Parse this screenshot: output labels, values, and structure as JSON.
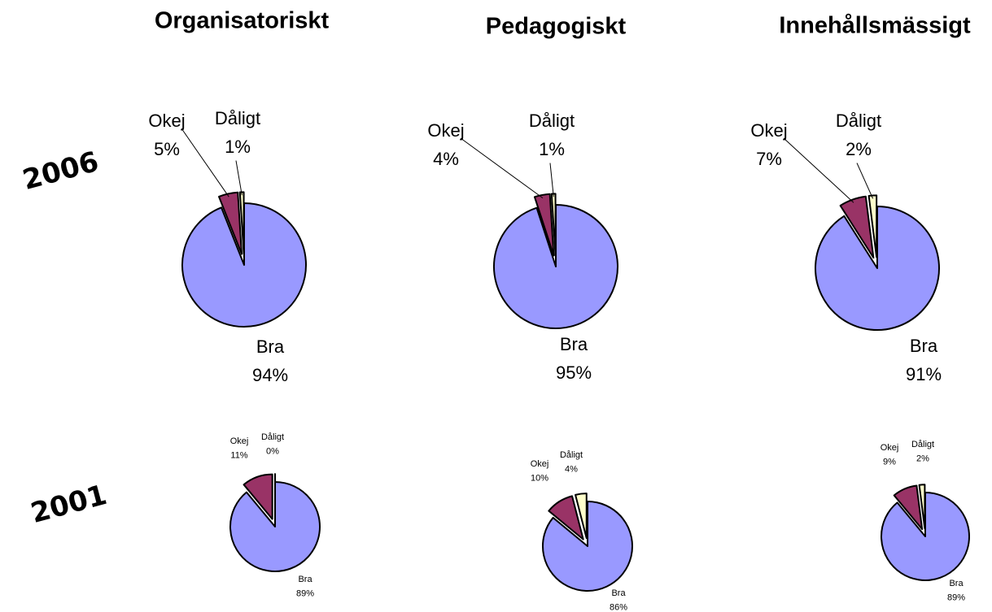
{
  "column_titles": [
    "Organisatoriskt",
    "Pedagogiskt",
    "Innehållsmässigt"
  ],
  "row_labels": [
    "2006",
    "2001"
  ],
  "chart_data": [
    {
      "type": "pie",
      "categories": [
        "Bra",
        "Okej",
        "Dåligt"
      ],
      "values": [
        94,
        5,
        1
      ],
      "value_labels": [
        "94%",
        "5%",
        "1%"
      ],
      "colors": [
        "#9999ff",
        "#993366",
        "#ffffcc"
      ]
    },
    {
      "type": "pie",
      "categories": [
        "Bra",
        "Okej",
        "Dåligt"
      ],
      "values": [
        95,
        4,
        1
      ],
      "value_labels": [
        "95%",
        "4%",
        "1%"
      ],
      "colors": [
        "#9999ff",
        "#993366",
        "#ffffcc"
      ]
    },
    {
      "type": "pie",
      "categories": [
        "Bra",
        "Okej",
        "Dåligt"
      ],
      "values": [
        91,
        7,
        2
      ],
      "value_labels": [
        "91%",
        "7%",
        "2%"
      ],
      "colors": [
        "#9999ff",
        "#993366",
        "#ffffcc"
      ]
    },
    {
      "type": "pie",
      "categories": [
        "Bra",
        "Okej",
        "Dåligt"
      ],
      "values": [
        89,
        11,
        0
      ],
      "value_labels": [
        "89%",
        "11%",
        "0%"
      ],
      "colors": [
        "#9999ff",
        "#993366",
        "#ffffcc"
      ]
    },
    {
      "type": "pie",
      "categories": [
        "Bra",
        "Okej",
        "Dåligt"
      ],
      "values": [
        86,
        10,
        4
      ],
      "value_labels": [
        "86%",
        "10%",
        "4%"
      ],
      "colors": [
        "#9999ff",
        "#993366",
        "#ffffcc"
      ]
    },
    {
      "type": "pie",
      "categories": [
        "Bra",
        "Okej",
        "Dåligt"
      ],
      "values": [
        89,
        9,
        2
      ],
      "value_labels": [
        "89%",
        "9%",
        "2%"
      ],
      "colors": [
        "#9999ff",
        "#993366",
        "#ffffcc"
      ]
    }
  ]
}
